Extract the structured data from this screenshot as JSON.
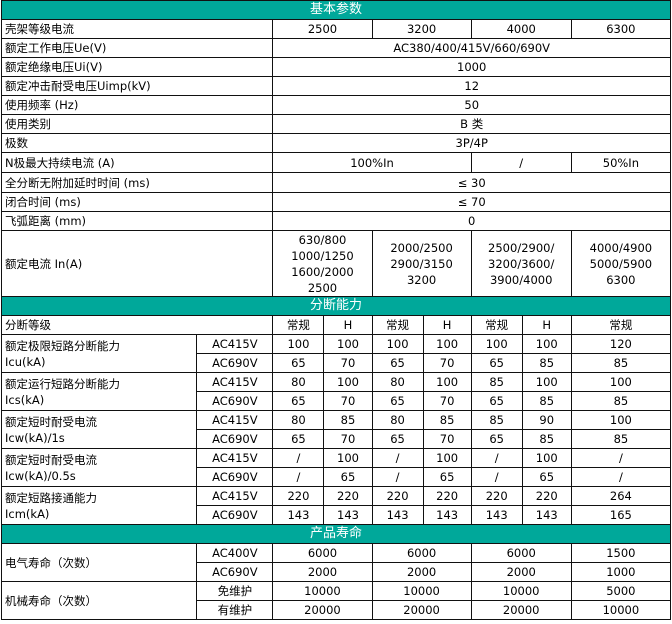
{
  "colors": {
    "section_header_bg": "#00a89a",
    "section_header_text": "#ffffff"
  },
  "basic": {
    "title": "基本参数",
    "frame_current": {
      "label": "壳架等级电流",
      "values": [
        "2500",
        "3200",
        "4000",
        "6300"
      ]
    },
    "single_rows": [
      {
        "label": "额定工作电压Ue(V)",
        "value": "AC380/400/415V/660/690V"
      },
      {
        "label": "额定绝缘电压Ui(V)",
        "value": "1000"
      },
      {
        "label": "额定冲击耐受电压Uimp(kV)",
        "value": "12"
      },
      {
        "label": "使用频率 (Hz)",
        "value": "50"
      },
      {
        "label": "使用类别",
        "value": "B 类"
      },
      {
        "label": "极数",
        "value": "3P/4P"
      }
    ],
    "n_pole": {
      "label": "N极最大持续电流 (A)",
      "values": [
        "100%In",
        "/",
        "50%In"
      ]
    },
    "single_rows2": [
      {
        "label": "全分断无附加延时时间 (ms)",
        "value": "≤ 30"
      },
      {
        "label": "闭合时间 (ms)",
        "value": "≤ 70"
      },
      {
        "label": "飞弧距离 (mm)",
        "value": "0"
      }
    ],
    "rated_current": {
      "label": "额定电流 In(A)",
      "values": [
        "630/800\n1000/1250\n1600/2000\n2500",
        "2000/2500\n2900/3150\n3200",
        "2500/2900/\n3200/3600/\n3900/4000",
        "4000/4900\n5000/5900\n6300"
      ]
    }
  },
  "breaking": {
    "title": "分断能力",
    "class_row": {
      "label": "分断等级",
      "values": [
        "常规",
        "H",
        "常规",
        "H",
        "常规",
        "H",
        "常规"
      ]
    },
    "params": [
      {
        "label": "额定极限短路分断能力\nIcu(kA)",
        "rows": [
          {
            "voltage": "AC415V",
            "values": [
              "100",
              "100",
              "100",
              "100",
              "100",
              "100",
              "120"
            ]
          },
          {
            "voltage": "AC690V",
            "values": [
              "65",
              "70",
              "65",
              "70",
              "65",
              "85",
              "85"
            ]
          }
        ]
      },
      {
        "label": "额定运行短路分断能力\nIcs(kA)",
        "rows": [
          {
            "voltage": "AC415V",
            "values": [
              "80",
              "100",
              "80",
              "100",
              "85",
              "100",
              "100"
            ]
          },
          {
            "voltage": "AC690V",
            "values": [
              "65",
              "70",
              "65",
              "70",
              "65",
              "85",
              "85"
            ]
          }
        ]
      },
      {
        "label": "额定短时耐受电流\nIcw(kA)/1s",
        "rows": [
          {
            "voltage": "AC415V",
            "values": [
              "80",
              "85",
              "80",
              "85",
              "85",
              "90",
              "100"
            ]
          },
          {
            "voltage": "AC690V",
            "values": [
              "65",
              "70",
              "65",
              "70",
              "65",
              "85",
              "85"
            ]
          }
        ]
      },
      {
        "label": "额定短时耐受电流\nIcw(kA)/0.5s",
        "rows": [
          {
            "voltage": "AC415V",
            "values": [
              "/",
              "100",
              "/",
              "100",
              "/",
              "100",
              "/"
            ]
          },
          {
            "voltage": "AC690V",
            "values": [
              "/",
              "65",
              "/",
              "65",
              "/",
              "65",
              "/"
            ]
          }
        ]
      },
      {
        "label": "额定短路接通能力\nIcm(kA)",
        "rows": [
          {
            "voltage": "AC415V",
            "values": [
              "220",
              "220",
              "220",
              "220",
              "220",
              "220",
              "264"
            ]
          },
          {
            "voltage": "AC690V",
            "values": [
              "143",
              "143",
              "143",
              "143",
              "143",
              "143",
              "165"
            ]
          }
        ]
      }
    ]
  },
  "life": {
    "title": "产品寿命",
    "params": [
      {
        "label": "电气寿命（次数）",
        "rows": [
          {
            "sub": "AC400V",
            "values": [
              "6000",
              "6000",
              "6000",
              "1500"
            ]
          },
          {
            "sub": "AC690V",
            "values": [
              "2000",
              "2000",
              "2000",
              "1000"
            ]
          }
        ]
      },
      {
        "label": "机械寿命（次数）",
        "rows": [
          {
            "sub": "免维护",
            "values": [
              "10000",
              "10000",
              "10000",
              "5000"
            ]
          },
          {
            "sub": "有维护",
            "values": [
              "20000",
              "20000",
              "20000",
              "10000"
            ]
          }
        ]
      }
    ]
  }
}
